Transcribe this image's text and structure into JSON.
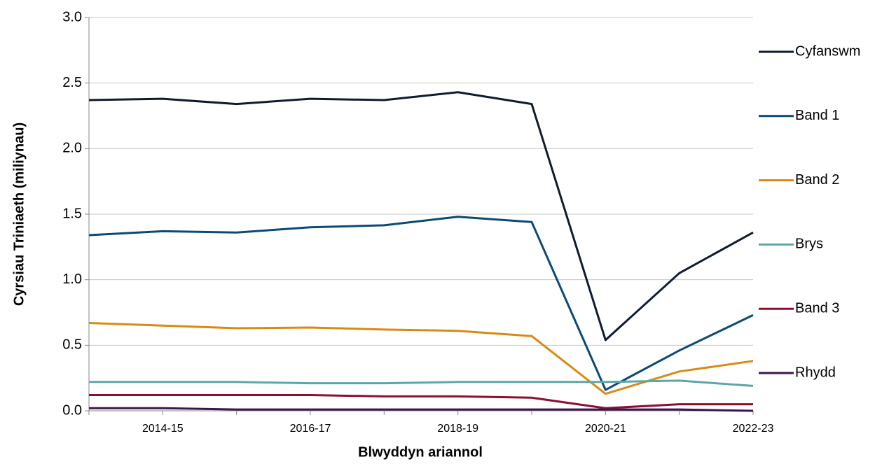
{
  "chart_data": {
    "type": "line",
    "xlabel": "Blwyddyn ariannol",
    "ylabel": "Cyrsiau Triniaeth (miliynau)",
    "categories": [
      null,
      "2014-15",
      null,
      "2016-17",
      null,
      "2018-19",
      null,
      "2020-21",
      null,
      "2022-23"
    ],
    "series": [
      {
        "name": "Cyfanswm",
        "color": "#0f1c2e",
        "values": [
          2.37,
          2.38,
          2.34,
          2.38,
          2.37,
          2.43,
          2.34,
          0.54,
          1.05,
          1.36
        ]
      },
      {
        "name": "Band 1",
        "color": "#0b4a75",
        "values": [
          1.34,
          1.37,
          1.36,
          1.4,
          1.415,
          1.48,
          1.44,
          0.16,
          0.46,
          0.73
        ]
      },
      {
        "name": "Band 2",
        "color": "#d98a14",
        "values": [
          0.67,
          0.65,
          0.63,
          0.635,
          0.62,
          0.61,
          0.57,
          0.13,
          0.3,
          0.38
        ]
      },
      {
        "name": "Brys",
        "color": "#5fa6a6",
        "values": [
          0.22,
          0.22,
          0.22,
          0.21,
          0.21,
          0.22,
          0.22,
          0.22,
          0.23,
          0.19
        ]
      },
      {
        "name": "Band 3",
        "color": "#8b1030",
        "values": [
          0.12,
          0.12,
          0.12,
          0.12,
          0.11,
          0.11,
          0.1,
          0.02,
          0.05,
          0.05
        ]
      },
      {
        "name": "Rhydd",
        "color": "#3b1550",
        "values": [
          0.02,
          0.02,
          0.01,
          0.01,
          0.01,
          0.01,
          0.01,
          0.01,
          0.01,
          0.0
        ]
      }
    ],
    "ylim": [
      0,
      3
    ],
    "yticks": [
      {
        "value": 0,
        "label": "0.0"
      },
      0.5,
      {
        "value": 1,
        "label": "1.0"
      },
      1.5,
      {
        "value": 2,
        "label": "2.0"
      },
      2.5,
      {
        "value": 3,
        "label": "3.0"
      }
    ],
    "grid": true
  }
}
